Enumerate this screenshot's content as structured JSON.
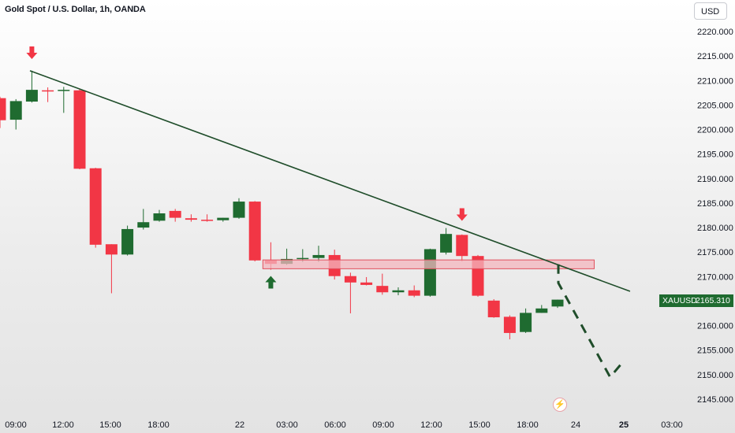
{
  "header": {
    "title": "Gold Spot / U.S. Dollar, 1h, OANDA",
    "currency": "USD"
  },
  "price_badge": {
    "symbol": "XAUUSD",
    "price": "2165.310"
  },
  "event_icon": "lightning-icon",
  "colors": {
    "up": "#1f6b30",
    "down": "#f23645",
    "trendline": "#1f4d2a",
    "zone_fill": "#f4b6bd",
    "zone_border": "#e0505d",
    "projection": "#1f4d2a",
    "background_top": "#ffffff",
    "background_bottom": "#e3e3e3"
  },
  "chart_data": {
    "type": "candlestick",
    "title": "Gold Spot / U.S. Dollar, 1h, OANDA",
    "ylim": [
      2141.5,
      2224.5
    ],
    "y_ticks": [
      "2145.000",
      "2150.000",
      "2155.000",
      "2160.000",
      "2165.000",
      "2170.000",
      "2175.000",
      "2180.000",
      "2185.000",
      "2190.000",
      "2195.000",
      "2200.000",
      "2205.000",
      "2210.000",
      "2215.000",
      "2220.000"
    ],
    "x_ticks": [
      "09:00",
      "12:00",
      "15:00",
      "18:00",
      "22",
      "03:00",
      "06:00",
      "09:00",
      "12:00",
      "15:00",
      "18:00",
      "24",
      "25",
      "03:00"
    ],
    "bold_x_ticks": [
      "25"
    ],
    "candles": [
      {
        "o": 2206.4,
        "h": 2206.7,
        "l": 2200.3,
        "c": 2201.9
      },
      {
        "o": 2202.0,
        "h": 2206.2,
        "l": 2200.0,
        "c": 2205.8
      },
      {
        "o": 2205.7,
        "h": 2212.0,
        "l": 2205.5,
        "c": 2208.1
      },
      {
        "o": 2208.0,
        "h": 2208.6,
        "l": 2205.6,
        "c": 2207.8
      },
      {
        "o": 2207.9,
        "h": 2208.7,
        "l": 2203.4,
        "c": 2208.1
      },
      {
        "o": 2208.0,
        "h": 2208.3,
        "l": 2191.9,
        "c": 2192.0
      },
      {
        "o": 2192.1,
        "h": 2192.2,
        "l": 2175.9,
        "c": 2176.5
      },
      {
        "o": 2176.6,
        "h": 2176.6,
        "l": 2166.6,
        "c": 2174.5
      },
      {
        "o": 2174.5,
        "h": 2180.4,
        "l": 2174.3,
        "c": 2179.7
      },
      {
        "o": 2180.0,
        "h": 2183.8,
        "l": 2179.6,
        "c": 2181.1
      },
      {
        "o": 2181.4,
        "h": 2183.6,
        "l": 2181.2,
        "c": 2182.9
      },
      {
        "o": 2183.4,
        "h": 2183.8,
        "l": 2181.2,
        "c": 2182.0
      },
      {
        "o": 2181.9,
        "h": 2182.7,
        "l": 2181.2,
        "c": 2181.6
      },
      {
        "o": 2181.6,
        "h": 2182.7,
        "l": 2181.2,
        "c": 2181.5
      },
      {
        "o": 2181.5,
        "h": 2182.0,
        "l": 2181.2,
        "c": 2182.0
      },
      {
        "o": 2182.0,
        "h": 2186.0,
        "l": 2181.8,
        "c": 2185.3
      },
      {
        "o": 2185.3,
        "h": 2185.4,
        "l": 2173.1,
        "c": 2173.3
      },
      {
        "o": 2173.3,
        "h": 2177.0,
        "l": 2171.4,
        "c": 2172.6
      },
      {
        "o": 2172.6,
        "h": 2175.7,
        "l": 2172.4,
        "c": 2173.6
      },
      {
        "o": 2173.6,
        "h": 2175.6,
        "l": 2173.0,
        "c": 2173.8
      },
      {
        "o": 2173.8,
        "h": 2176.3,
        "l": 2173.0,
        "c": 2174.4
      },
      {
        "o": 2174.4,
        "h": 2175.5,
        "l": 2169.4,
        "c": 2170.1
      },
      {
        "o": 2170.1,
        "h": 2170.8,
        "l": 2162.5,
        "c": 2168.8
      },
      {
        "o": 2168.8,
        "h": 2169.9,
        "l": 2168.2,
        "c": 2168.3
      },
      {
        "o": 2168.1,
        "h": 2170.6,
        "l": 2166.3,
        "c": 2166.8
      },
      {
        "o": 2166.8,
        "h": 2167.8,
        "l": 2166.2,
        "c": 2167.2
      },
      {
        "o": 2167.2,
        "h": 2168.2,
        "l": 2165.8,
        "c": 2166.1
      },
      {
        "o": 2166.1,
        "h": 2175.7,
        "l": 2165.9,
        "c": 2175.6
      },
      {
        "o": 2174.9,
        "h": 2179.9,
        "l": 2174.5,
        "c": 2178.7
      },
      {
        "o": 2178.5,
        "h": 2178.6,
        "l": 2173.1,
        "c": 2174.2
      },
      {
        "o": 2174.2,
        "h": 2174.4,
        "l": 2165.9,
        "c": 2166.1
      },
      {
        "o": 2165.1,
        "h": 2165.4,
        "l": 2161.6,
        "c": 2161.7
      },
      {
        "o": 2161.8,
        "h": 2162.1,
        "l": 2157.2,
        "c": 2158.5
      },
      {
        "o": 2158.7,
        "h": 2163.5,
        "l": 2158.5,
        "c": 2162.6
      },
      {
        "o": 2162.6,
        "h": 2164.2,
        "l": 2162.6,
        "c": 2163.5
      },
      {
        "o": 2163.9,
        "h": 2165.3,
        "l": 2163.6,
        "c": 2165.3
      }
    ],
    "annotations": {
      "trendline": {
        "from": [
          0,
          2212.0
        ],
        "to": [
          39.55,
          2167.0
        ]
      },
      "resistance_zone": {
        "x_from": 16.5,
        "x_to": 37.3,
        "y_low": 2171.6,
        "y_high": 2173.4
      },
      "projection_path": [
        [
          35.05,
          2172.5
        ],
        [
          35.05,
          2168.7
        ],
        [
          38.3,
          2149.5
        ],
        [
          38.95,
          2152.0
        ]
      ],
      "arrows": [
        {
          "index": 2,
          "direction": "down",
          "color": "#f23645",
          "price": 2215.5
        },
        {
          "index": 29,
          "direction": "down",
          "color": "#f23645",
          "price": 2182.5
        },
        {
          "index": 17,
          "direction": "up",
          "color": "#1f6b30",
          "price": 2169.0
        }
      ]
    }
  }
}
